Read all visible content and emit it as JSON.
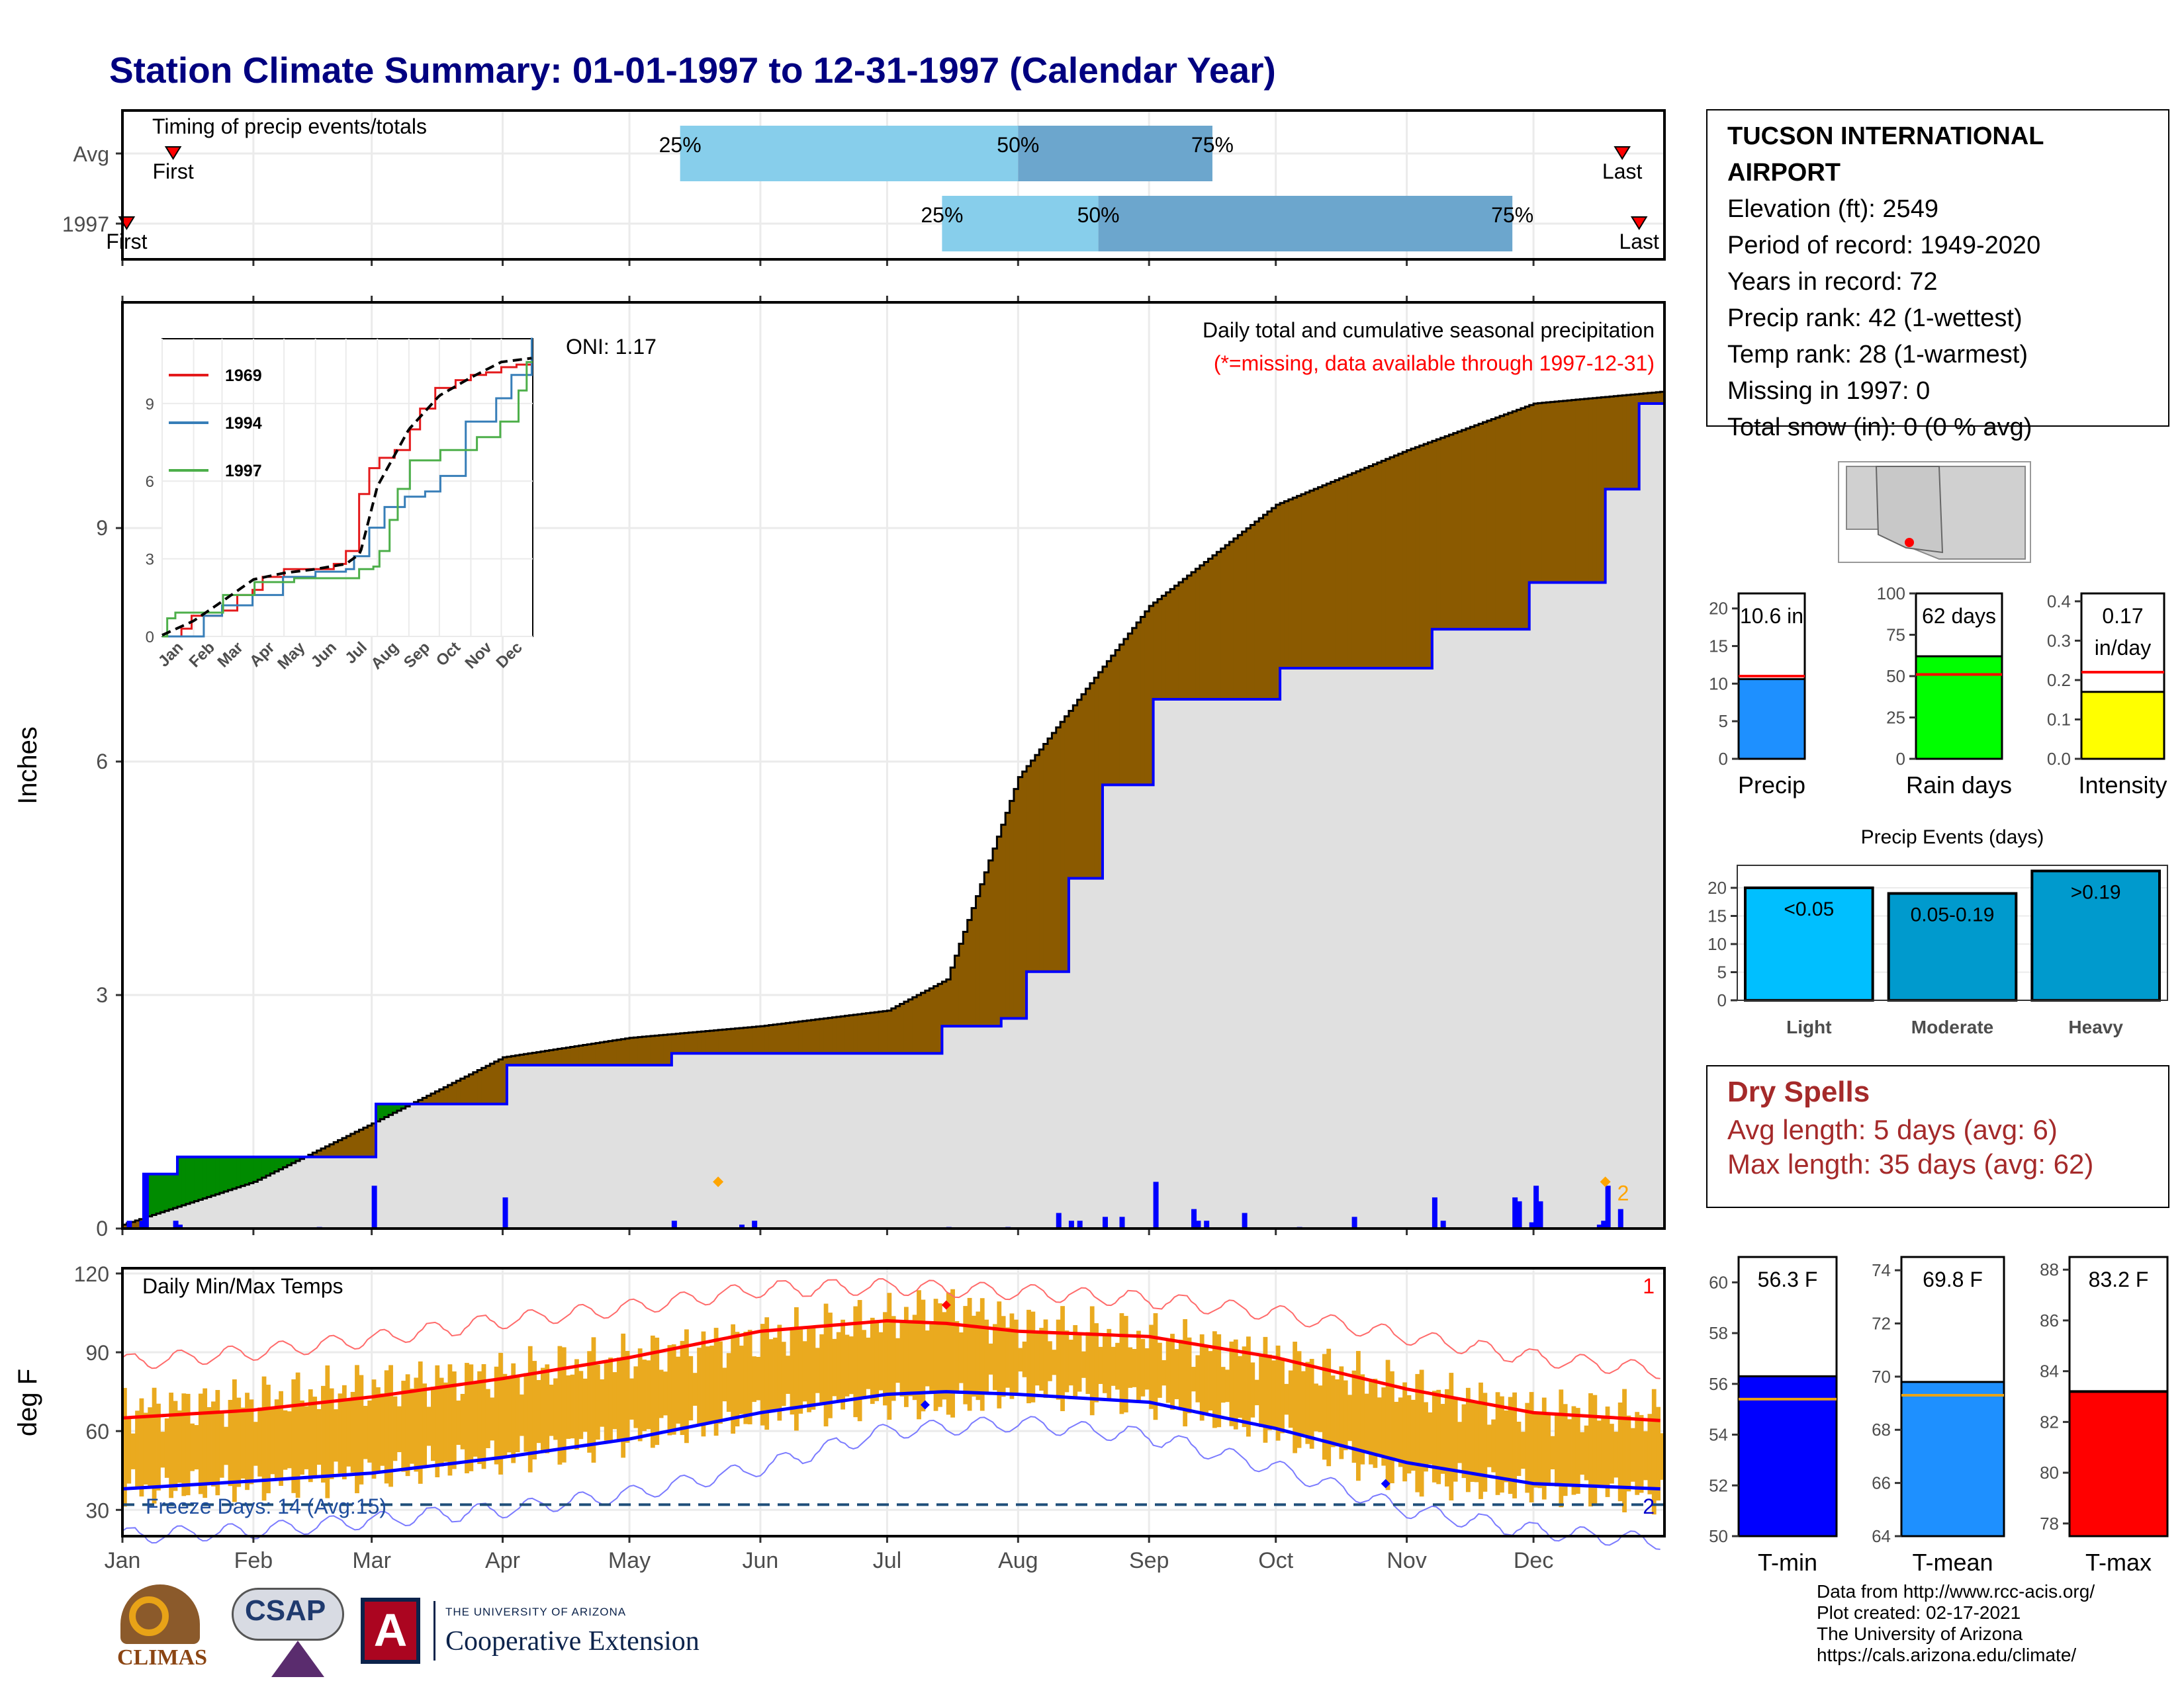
{
  "header": {
    "title": "Station Climate Summary: 01-01-1997 to 12-31-1997 (Calendar Year)"
  },
  "station": {
    "name": "TUCSON INTERNATIONAL AIRPORT",
    "elevation": "Elevation (ft): 2549",
    "period": "Period of record: 1949-2020",
    "years": "Years in record: 72",
    "precip_rank": "Precip rank: 42 (1-wettest)",
    "temp_rank": "Temp rank: 28 (1-warmest)",
    "missing": "Missing in 1997: 0",
    "snow": "Total snow (in): 0 (0 % avg)"
  },
  "dry_spells": {
    "title": "Dry Spells",
    "avg": "Avg length: 5 days (avg: 6)",
    "max": "Max length: 35 days (avg: 62)"
  },
  "credits": {
    "line1": "Data from http://www.rcc-acis.org/",
    "line2": "Plot created: 02-17-2021",
    "line3": "The University of Arizona",
    "line4": "https://cals.arizona.edu/climate/"
  },
  "logos": {
    "climas": "CLIMAS",
    "csap": "CSAP",
    "ua_small": "THE UNIVERSITY OF ARIZONA",
    "ua_big": "Cooperative Extension"
  },
  "colors": {
    "deficit": "#8B5A00",
    "surplus": "#008B00",
    "avg_cum": "#e0e0e0",
    "obs_line": "#0000ff",
    "tmax": "#ff0000",
    "tmin": "#0000ff",
    "temp_bar": "#EAAA1F",
    "light_blue": "#87CEEB",
    "mid_blue": "#6CA6CD"
  },
  "chart_data": [
    {
      "type": "timeline",
      "id": "timing",
      "title": "Timing of precip events/totals",
      "categories": [
        "Avg",
        "1997"
      ],
      "rows": [
        {
          "name": "Avg",
          "first_doy": 13,
          "p25_doy": 133,
          "p50_doy": 213,
          "p75_doy": 259,
          "last_doy": 356,
          "labels": [
            "First",
            "25%",
            "50%",
            "75%",
            "Last"
          ]
        },
        {
          "name": "1997",
          "first_doy": 2,
          "p25_doy": 195,
          "p50_doy": 232,
          "p75_doy": 330,
          "last_doy": 360,
          "labels": [
            "First",
            "25%",
            "50%",
            "75%",
            "Last"
          ]
        }
      ]
    },
    {
      "type": "area",
      "id": "cumulative",
      "title": "Daily total and cumulative seasonal precipitation",
      "subtitle": "(*=missing, data available through 1997-12-31)",
      "annotation": "ONI: 1.17",
      "ylabel": "Inches",
      "ylim": [
        0,
        11.9
      ],
      "yticks": [
        0,
        3,
        6,
        9
      ],
      "months": [
        "Jan",
        "Feb",
        "Mar",
        "Apr",
        "May",
        "Jun",
        "Jul",
        "Aug",
        "Sep",
        "Oct",
        "Nov",
        "Dec"
      ],
      "avg_cumulative": {
        "doy": [
          1,
          32,
          60,
          91,
          121,
          152,
          182,
          196,
          213,
          244,
          274,
          305,
          335,
          365
        ],
        "values": [
          0.05,
          0.6,
          1.35,
          2.2,
          2.45,
          2.6,
          2.8,
          3.2,
          5.8,
          8.0,
          9.3,
          10.0,
          10.6,
          10.75
        ]
      },
      "obs_cumulative": {
        "doy": [
          1,
          6,
          14,
          60,
          61,
          91,
          92,
          130,
          131,
          195,
          209,
          215,
          225,
          233,
          245,
          275,
          311,
          334,
          352,
          360,
          365
        ],
        "values": [
          0.0,
          0.7,
          0.92,
          0.92,
          1.6,
          1.6,
          2.1,
          2.1,
          2.25,
          2.6,
          2.7,
          3.3,
          4.5,
          5.7,
          6.8,
          7.2,
          7.7,
          8.3,
          9.5,
          10.6,
          10.6
        ]
      },
      "daily": {
        "doy": [
          2,
          5,
          6,
          13,
          14,
          47,
          60,
          91,
          131,
          147,
          150,
          196,
          210,
          222,
          225,
          227,
          233,
          237,
          245,
          254,
          255,
          257,
          266,
          279,
          292,
          311,
          313,
          330,
          331,
          334,
          335,
          336,
          350,
          351,
          352,
          355
        ],
        "values": [
          0.1,
          0.1,
          0.7,
          0.1,
          0.05,
          0.02,
          0.55,
          0.4,
          0.1,
          0.05,
          0.1,
          0.02,
          0.02,
          0.2,
          0.1,
          0.1,
          0.15,
          0.15,
          0.6,
          0.25,
          0.1,
          0.1,
          0.2,
          0.02,
          0.15,
          0.4,
          0.1,
          0.4,
          0.35,
          0.08,
          0.55,
          0.35,
          0.05,
          0.1,
          0.55,
          0.25
        ]
      },
      "markers": [
        {
          "doy": 142,
          "label": ""
        },
        {
          "doy": 352,
          "label": "2"
        }
      ]
    },
    {
      "type": "line",
      "id": "inset",
      "x_labels": [
        "Jan",
        "Feb",
        "Mar",
        "Apr",
        "May",
        "Jun",
        "Jul",
        "Aug",
        "Sep",
        "Oct",
        "Nov",
        "Dec"
      ],
      "yticks": [
        0,
        3,
        6,
        9
      ],
      "ylim": [
        0,
        11.5
      ],
      "series": [
        {
          "name": "1969",
          "color": "#e41a1c",
          "doy": [
            1,
            20,
            30,
            60,
            75,
            90,
            100,
            121,
            152,
            170,
            182,
            195,
            205,
            215,
            230,
            245,
            255,
            270,
            290,
            305,
            320,
            335,
            350,
            365
          ],
          "values": [
            0,
            0.3,
            0.8,
            1.0,
            1.6,
            1.8,
            2.3,
            2.6,
            2.6,
            2.8,
            3.3,
            5.5,
            6.5,
            6.9,
            7.2,
            8.0,
            8.8,
            9.6,
            9.9,
            10.1,
            10.2,
            10.4,
            10.5,
            10.6
          ]
        },
        {
          "name": "1994",
          "color": "#377eb8",
          "doy": [
            1,
            40,
            42,
            60,
            90,
            120,
            152,
            182,
            190,
            205,
            220,
            240,
            260,
            275,
            300,
            330,
            345,
            365
          ],
          "values": [
            0,
            0,
            0.8,
            1.2,
            1.6,
            2.3,
            2.5,
            2.6,
            3.1,
            4.2,
            5.0,
            5.4,
            5.6,
            6.2,
            8.3,
            9.2,
            10.1,
            11.5
          ]
        },
        {
          "name": "1997",
          "color": "#4daf4a",
          "doy": [
            1,
            6,
            14,
            60,
            61,
            91,
            92,
            130,
            131,
            195,
            209,
            215,
            225,
            233,
            245,
            275,
            311,
            334,
            352,
            360,
            365
          ],
          "values": [
            0.0,
            0.7,
            0.92,
            0.92,
            1.6,
            1.6,
            2.1,
            2.1,
            2.25,
            2.6,
            2.7,
            3.3,
            4.5,
            5.7,
            6.8,
            7.2,
            7.7,
            8.3,
            9.5,
            10.6,
            10.6
          ]
        },
        {
          "name": "Avg",
          "color": "#000000",
          "dashed": true,
          "doy": [
            1,
            32,
            60,
            91,
            121,
            152,
            182,
            196,
            213,
            244,
            274,
            305,
            335,
            365
          ],
          "values": [
            0.05,
            0.6,
            1.35,
            2.2,
            2.45,
            2.6,
            2.8,
            3.2,
            5.8,
            8.0,
            9.3,
            10.0,
            10.6,
            10.75
          ]
        }
      ]
    },
    {
      "type": "bar",
      "id": "temps",
      "title": "Daily Min/Max Temps",
      "ylabel": "deg F",
      "ylim": [
        20,
        122
      ],
      "yticks": [
        30,
        60,
        90,
        120
      ],
      "months": [
        "Jan",
        "Feb",
        "Mar",
        "Apr",
        "May",
        "Jun",
        "Jul",
        "Aug",
        "Sep",
        "Oct",
        "Nov",
        "Dec"
      ],
      "freeze_label": "Freeze Days: 14 (Avg:15)",
      "freeze_line": 32,
      "count_top": "1",
      "count_bottom": "2",
      "normal_max": {
        "doy": [
          1,
          32,
          60,
          91,
          121,
          152,
          182,
          196,
          213,
          244,
          274,
          305,
          335,
          365
        ],
        "values": [
          65,
          68,
          73,
          80,
          88,
          98,
          102,
          101,
          98,
          96,
          88,
          76,
          67,
          64
        ]
      },
      "normal_min": {
        "doy": [
          1,
          32,
          60,
          91,
          121,
          152,
          182,
          196,
          213,
          244,
          274,
          305,
          335,
          365
        ],
        "values": [
          38,
          41,
          44,
          50,
          57,
          67,
          74,
          75,
          74,
          71,
          61,
          48,
          40,
          38
        ]
      },
      "record_max": {
        "doy": [
          1,
          32,
          60,
          91,
          121,
          152,
          182,
          213,
          244,
          274,
          305,
          335,
          365
        ],
        "values": [
          86,
          90,
          95,
          102,
          107,
          114,
          115,
          113,
          110,
          105,
          96,
          88,
          83
        ]
      },
      "record_min": {
        "doy": [
          1,
          32,
          60,
          91,
          121,
          152,
          182,
          213,
          244,
          274,
          305,
          335,
          365
        ],
        "values": [
          20,
          22,
          26,
          30,
          36,
          46,
          60,
          63,
          58,
          46,
          30,
          22,
          18
        ]
      },
      "obs_max": {
        "doy": [
          1,
          32,
          60,
          91,
          121,
          152,
          182,
          196,
          213,
          244,
          274,
          305,
          335,
          365
        ],
        "values": [
          68,
          72,
          77,
          82,
          88,
          96,
          103,
          108,
          100,
          96,
          88,
          76,
          68,
          66
        ]
      },
      "obs_min": {
        "doy": [
          1,
          32,
          60,
          91,
          121,
          152,
          182,
          196,
          213,
          244,
          274,
          305,
          335,
          365
        ],
        "values": [
          38,
          40,
          44,
          50,
          58,
          66,
          72,
          70,
          76,
          72,
          60,
          42,
          38,
          36
        ]
      },
      "highlights": [
        {
          "doy": 196,
          "value": 108,
          "color": "#ff0000"
        },
        {
          "doy": 191,
          "value": 70,
          "color": "#0000ff"
        },
        {
          "doy": 300,
          "value": 40,
          "color": "#0000ff"
        }
      ]
    },
    {
      "type": "bar",
      "id": "precip_small",
      "xlabel": "Precip",
      "ylim": [
        0,
        22
      ],
      "yticks": [
        0,
        5,
        10,
        15,
        20
      ],
      "value": 10.6,
      "avg": 11.0,
      "label": "10.6 in",
      "color": "#1E90FF"
    },
    {
      "type": "bar",
      "id": "raindays_small",
      "xlabel": "Rain days",
      "ylim": [
        0,
        100
      ],
      "yticks": [
        0,
        25,
        50,
        75,
        100
      ],
      "value": 62,
      "avg": 51,
      "label": "62 days",
      "color": "#00FF00"
    },
    {
      "type": "bar",
      "id": "intensity_small",
      "xlabel": "Intensity",
      "ylim": [
        0,
        0.42
      ],
      "yticks": [
        0.0,
        0.1,
        0.2,
        0.3,
        0.4
      ],
      "value": 0.17,
      "avg": 0.22,
      "label": "0.17",
      "label2": "in/day",
      "color": "#FFFF00"
    },
    {
      "type": "bar",
      "id": "events",
      "title": "Precip Events (days)",
      "categories": [
        "Light",
        "Moderate",
        "Heavy"
      ],
      "values": [
        20,
        19,
        23
      ],
      "labels": [
        "<0.05",
        "0.05-0.19",
        ">0.19"
      ],
      "colors": [
        "#00BFFF",
        "#009ACD",
        "#009ACD"
      ],
      "ylim": [
        0,
        24
      ],
      "yticks": [
        0,
        5,
        10,
        15,
        20
      ]
    },
    {
      "type": "bar",
      "id": "tmin_small",
      "xlabel": "T-min",
      "ylim": [
        50,
        61
      ],
      "yticks": [
        50,
        52,
        54,
        56,
        58,
        60
      ],
      "value": 56.3,
      "avg": 55.4,
      "label": "56.3 F",
      "color": "#0000FF"
    },
    {
      "type": "bar",
      "id": "tmean_small",
      "xlabel": "T-mean",
      "ylim": [
        64,
        74.5
      ],
      "yticks": [
        64,
        66,
        68,
        70,
        72,
        74
      ],
      "value": 69.8,
      "avg": 69.3,
      "label": "69.8 F",
      "color": "#1E90FF"
    },
    {
      "type": "bar",
      "id": "tmax_small",
      "xlabel": "T-max",
      "ylim": [
        77.5,
        88.5
      ],
      "yticks": [
        78,
        80,
        82,
        84,
        86,
        88
      ],
      "value": 83.2,
      "avg": 83.2,
      "label": "83.2 F",
      "color": "#FF0000"
    }
  ]
}
